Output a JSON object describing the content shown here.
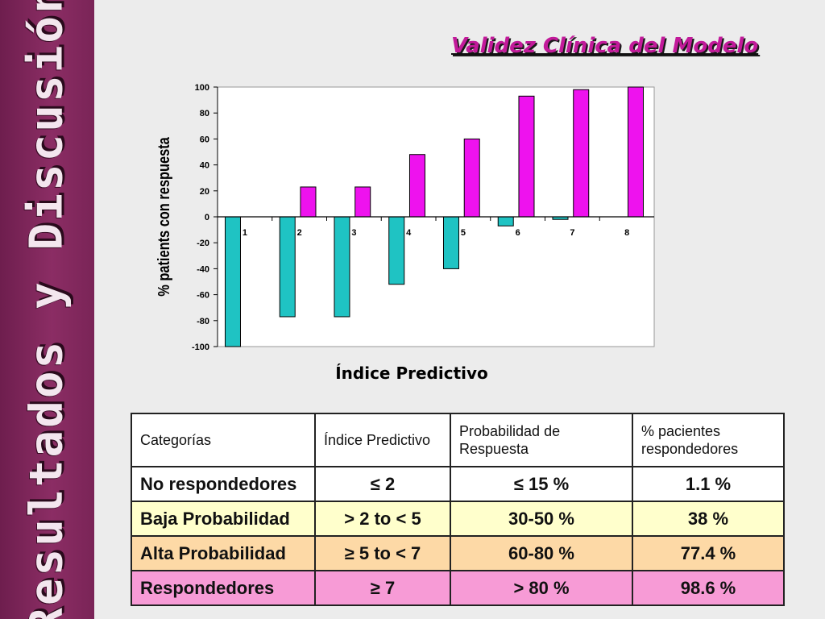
{
  "sidebar": {
    "title": "Resultados y Discusión"
  },
  "slide": {
    "title": "Validez Clínica del Modelo"
  },
  "colors": {
    "negative_bar": "#1fc3c3",
    "positive_bar": "#ee12ee",
    "title": "#c21a9a",
    "sidebar": "#8b2d64"
  },
  "chart_data": {
    "type": "bar",
    "categories": [
      "1",
      "2",
      "3",
      "4",
      "5",
      "6",
      "7",
      "8"
    ],
    "series": [
      {
        "values": [
          -100,
          -77,
          -77,
          -52,
          -40,
          -7,
          -2,
          0
        ]
      },
      {
        "values": [
          0,
          23,
          23,
          48,
          60,
          93,
          98,
          100
        ]
      }
    ],
    "xlabel": "Índice Predictivo",
    "ylabel": "% patients con respuesta",
    "ylim": [
      -100,
      100
    ],
    "yticks": [
      "100",
      "80",
      "60",
      "40",
      "20",
      "0",
      "-20",
      "-40",
      "-60",
      "-80",
      "-100"
    ],
    "grid": false,
    "legend": "none"
  },
  "table": {
    "headers": [
      "Categorías",
      "Índice Predictivo",
      "Probabilidad de Respuesta",
      "% pacientes respondedores"
    ],
    "rows": [
      [
        "No respondedores",
        "≤ 2",
        "≤ 15 %",
        "1.1 %"
      ],
      [
        "Baja Probabilidad",
        "> 2 to < 5",
        "30-50 %",
        "38 %"
      ],
      [
        "Alta Probabilidad",
        "≥ 5 to < 7",
        "60-80 %",
        "77.4 %"
      ],
      [
        "Respondedores",
        "≥ 7",
        "> 80 %",
        "98.6 %"
      ]
    ]
  }
}
